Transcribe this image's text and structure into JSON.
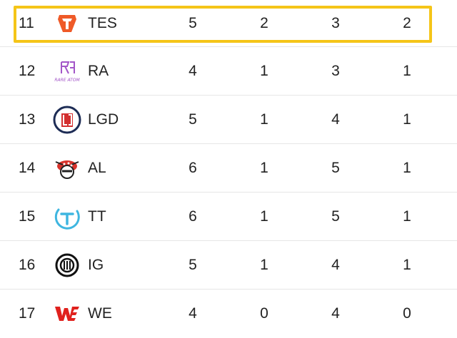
{
  "standings": {
    "highlight_color": "#f5c518",
    "rows": [
      {
        "rank": "11",
        "team": "TES",
        "logo": "tes-logo-icon",
        "c1": "5",
        "c2": "2",
        "c3": "3",
        "c4": "2",
        "highlighted": true
      },
      {
        "rank": "12",
        "team": "RA",
        "logo": "rare-atom-logo-icon",
        "logo_text": "RARE ATOM",
        "c1": "4",
        "c2": "1",
        "c3": "3",
        "c4": "1"
      },
      {
        "rank": "13",
        "team": "LGD",
        "logo": "lgd-logo-icon",
        "c1": "5",
        "c2": "1",
        "c3": "4",
        "c4": "1"
      },
      {
        "rank": "14",
        "team": "AL",
        "logo": "al-logo-icon",
        "c1": "6",
        "c2": "1",
        "c3": "5",
        "c4": "1"
      },
      {
        "rank": "15",
        "team": "TT",
        "logo": "tt-logo-icon",
        "c1": "6",
        "c2": "1",
        "c3": "5",
        "c4": "1"
      },
      {
        "rank": "16",
        "team": "IG",
        "logo": "ig-logo-icon",
        "c1": "5",
        "c2": "1",
        "c3": "4",
        "c4": "1"
      },
      {
        "rank": "17",
        "team": "WE",
        "logo": "we-logo-icon",
        "c1": "4",
        "c2": "0",
        "c3": "4",
        "c4": "0"
      }
    ]
  }
}
